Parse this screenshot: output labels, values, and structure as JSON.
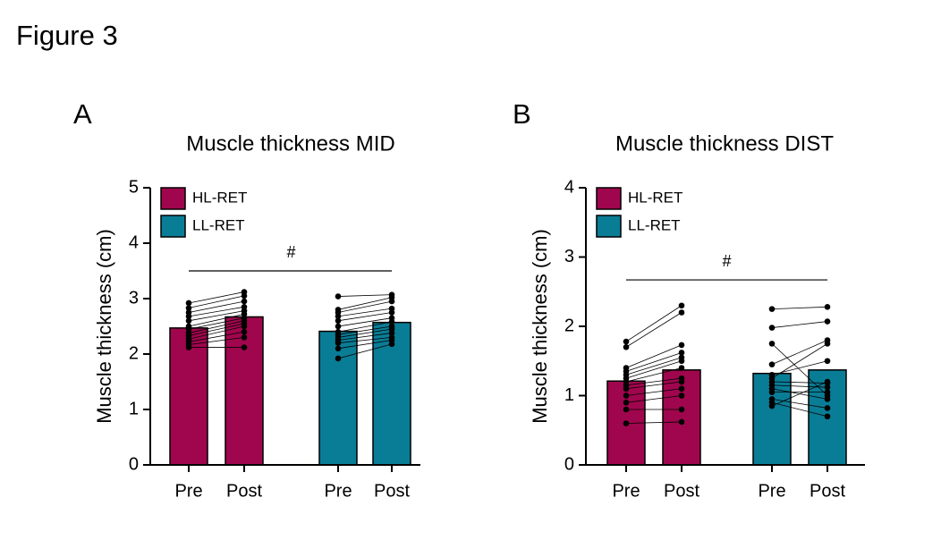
{
  "title": "Figure 3",
  "chart_data": [
    {
      "type": "bar",
      "panel": "A",
      "title": "Muscle thickness MID",
      "ylabel": "Muscle thickness (cm)",
      "categories": [
        "Pre",
        "Post"
      ],
      "ylim": [
        0,
        5
      ],
      "yticks": [
        0,
        1,
        2,
        3,
        4,
        5
      ],
      "annotation": "#",
      "annotation_y": 3.5,
      "series": [
        {
          "name": "HL-RET",
          "color": "#a0064d",
          "values": [
            2.47,
            2.67
          ],
          "points": [
            [
              2.12,
              2.12
            ],
            [
              2.17,
              2.3
            ],
            [
              2.22,
              2.4
            ],
            [
              2.27,
              2.5
            ],
            [
              2.33,
              2.55
            ],
            [
              2.38,
              2.6
            ],
            [
              2.45,
              2.65
            ],
            [
              2.5,
              2.72
            ],
            [
              2.6,
              2.78
            ],
            [
              2.68,
              2.85
            ],
            [
              2.75,
              2.95
            ],
            [
              2.83,
              3.05
            ],
            [
              2.92,
              3.12
            ]
          ]
        },
        {
          "name": "LL-RET",
          "color": "#0a7d96",
          "values": [
            2.41,
            2.57
          ],
          "points": [
            [
              1.92,
              2.18
            ],
            [
              2.1,
              2.25
            ],
            [
              2.2,
              2.3
            ],
            [
              2.25,
              2.38
            ],
            [
              2.3,
              2.45
            ],
            [
              2.35,
              2.5
            ],
            [
              2.4,
              2.58
            ],
            [
              2.5,
              2.65
            ],
            [
              2.6,
              2.75
            ],
            [
              2.68,
              2.82
            ],
            [
              2.75,
              2.95
            ],
            [
              2.8,
              3.02
            ],
            [
              3.04,
              3.07
            ]
          ]
        }
      ]
    },
    {
      "type": "bar",
      "panel": "B",
      "title": "Muscle thickness DIST",
      "ylabel": "Muscle thickness (cm)",
      "categories": [
        "Pre",
        "Post"
      ],
      "ylim": [
        0,
        4
      ],
      "yticks": [
        0,
        1,
        2,
        3,
        4
      ],
      "annotation": "#",
      "annotation_y": 2.67,
      "series": [
        {
          "name": "HL-RET",
          "color": "#a0064d",
          "values": [
            1.21,
            1.37
          ],
          "points": [
            [
              0.6,
              0.62
            ],
            [
              0.8,
              0.8
            ],
            [
              0.9,
              1.0
            ],
            [
              1.0,
              1.1
            ],
            [
              1.1,
              1.2
            ],
            [
              1.15,
              1.25
            ],
            [
              1.2,
              1.4
            ],
            [
              1.25,
              1.5
            ],
            [
              1.3,
              1.55
            ],
            [
              1.35,
              1.62
            ],
            [
              1.4,
              1.73
            ],
            [
              1.7,
              2.2
            ],
            [
              1.78,
              2.3
            ]
          ]
        },
        {
          "name": "LL-RET",
          "color": "#0a7d96",
          "values": [
            1.32,
            1.37
          ],
          "points": [
            [
              0.85,
              1.2
            ],
            [
              0.9,
              0.7
            ],
            [
              0.95,
              0.82
            ],
            [
              1.05,
              1.05
            ],
            [
              1.1,
              0.95
            ],
            [
              1.15,
              1.12
            ],
            [
              1.2,
              1.18
            ],
            [
              1.25,
              1.75
            ],
            [
              1.3,
              1.5
            ],
            [
              1.45,
              1.8
            ],
            [
              1.75,
              1.0
            ],
            [
              1.98,
              2.07
            ],
            [
              2.25,
              2.28
            ]
          ]
        }
      ]
    }
  ]
}
